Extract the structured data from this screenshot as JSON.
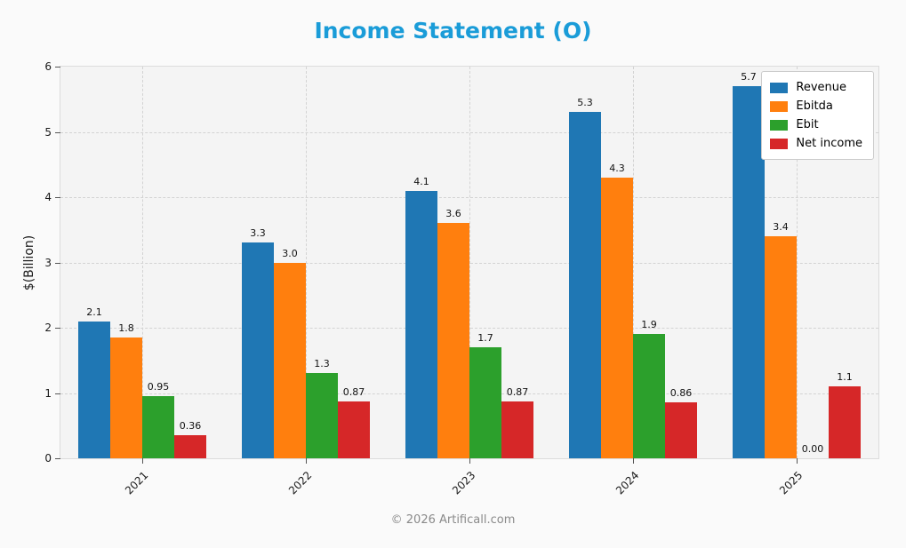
{
  "title": "Income Statement (O)",
  "title_color": "#1a9cd8",
  "ylabel": "$(Billion)",
  "footer": "© 2026 Artificall.com",
  "chart_data": {
    "type": "bar",
    "title": "Income Statement (O)",
    "xlabel": "",
    "ylabel": "$(Billion)",
    "categories": [
      "2021",
      "2022",
      "2023",
      "2024",
      "2025"
    ],
    "series": [
      {
        "name": "Revenue",
        "color": "#1f77b4",
        "values": [
          2.1,
          3.3,
          4.1,
          5.3,
          5.7
        ],
        "labels": [
          "2.1",
          "3.3",
          "4.1",
          "5.3",
          "5.7"
        ]
      },
      {
        "name": "Ebitda",
        "color": "#ff7f0e",
        "values": [
          1.85,
          3.0,
          3.6,
          4.3,
          3.4
        ],
        "labels": [
          "1.8",
          "3.0",
          "3.6",
          "4.3",
          "3.4"
        ]
      },
      {
        "name": "Ebit",
        "color": "#2ca02c",
        "values": [
          0.95,
          1.3,
          1.7,
          1.9,
          0.0
        ],
        "labels": [
          "0.95",
          "1.3",
          "1.7",
          "1.9",
          "0.00"
        ]
      },
      {
        "name": "Net income",
        "color": "#d62728",
        "values": [
          0.36,
          0.87,
          0.87,
          0.86,
          1.1
        ],
        "labels": [
          "0.36",
          "0.87",
          "0.87",
          "0.86",
          "1.1"
        ]
      }
    ],
    "ylim": [
      0,
      6
    ],
    "yticks": [
      "0",
      "1",
      "2",
      "3",
      "4",
      "5",
      "6"
    ],
    "grid": true,
    "legend_position": "upper right"
  }
}
